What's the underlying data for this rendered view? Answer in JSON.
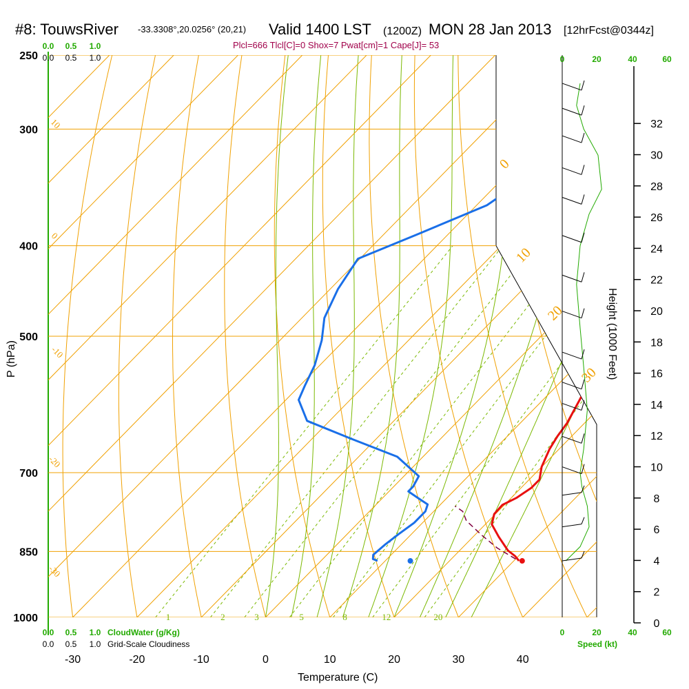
{
  "header": {
    "station": "#8: TouwsRiver",
    "coords": "-33.3308°,20.0256° (20,21)",
    "valid": "Valid 1400 LST",
    "zulu": "(1200Z)",
    "date": "MON 28 Jan 2013",
    "forecast": "[12hrFcst@0344z]",
    "indices": "Plcl=666 Tlcl[C]=0 Shox=7 Pwat[cm]=1 Cape[J]= 53"
  },
  "colors": {
    "isotherm": "#f0a000",
    "mixing_ratio": "#7ab800",
    "temperature": "#e81010",
    "dewpoint": "#1a6fe8",
    "parcel": "#800040",
    "cloud_axis": "#22aa00",
    "speed_line": "#22aa00",
    "indices_text": "#a0004a"
  },
  "labels": {
    "x_axis_title": "Temperature (C)",
    "y_axis_title": "P (hPa)",
    "height_axis_title": "Height (1000 Feet)",
    "cloudwater_label": "CloudWater (g/Kg)",
    "cloudiness_label": "Grid-Scale Cloudiness",
    "speed_label": "Speed (kt)"
  },
  "chart_data": {
    "type": "line",
    "title": "#8: TouwsRiver  Valid 1400 LST (1200Z) MON 28 Jan 2013",
    "xlabel": "Temperature (C)",
    "ylabel": "P (hPa)",
    "xlim": [
      -34,
      46
    ],
    "y_scale": "log",
    "ylim": [
      1000,
      250
    ],
    "x_ticks": [
      "-30",
      "-20",
      "-10",
      "0",
      "10",
      "20",
      "30",
      "40"
    ],
    "p_ticks": [
      "250",
      "300",
      "400",
      "500",
      "700",
      "850",
      "1000"
    ],
    "height_ticks": [
      "0",
      "2",
      "4",
      "6",
      "8",
      "10",
      "12",
      "14",
      "16",
      "18",
      "20",
      "22",
      "24",
      "26",
      "28",
      "30",
      "32"
    ],
    "cloud_ticks_green": [
      "0.0",
      "0.5",
      "1.0"
    ],
    "cloud_ticks_black": [
      "0.0",
      "0.5",
      "1.0"
    ],
    "speed_ticks": [
      "0",
      "20",
      "40",
      "60"
    ],
    "skewed_isotherm_labels": [
      "0",
      "10",
      "20",
      "30"
    ],
    "left_isotherm_labels": [
      "10",
      "0",
      "-10",
      "-20",
      "-30"
    ],
    "mixing_ratio_labels": [
      "1",
      "2",
      "3",
      "5",
      "8",
      "12",
      "20"
    ],
    "series": [
      {
        "name": "Temperature",
        "points": [
          [
            30.8,
            870
          ],
          [
            29.5,
            860
          ],
          [
            27.5,
            848
          ],
          [
            24.0,
            820
          ],
          [
            21.0,
            795
          ],
          [
            19.8,
            775
          ],
          [
            19.7,
            758
          ],
          [
            20.8,
            745
          ],
          [
            21.6,
            727
          ],
          [
            21.6,
            712
          ],
          [
            20.0,
            690
          ],
          [
            18.5,
            660
          ],
          [
            17.8,
            640
          ],
          [
            17.3,
            620
          ],
          [
            15.7,
            585
          ],
          [
            14.2,
            555
          ],
          [
            12.7,
            525
          ],
          [
            11.2,
            497
          ],
          [
            9.2,
            460
          ],
          [
            6.7,
            420
          ],
          [
            4.6,
            393
          ],
          [
            1.4,
            358
          ],
          [
            -2.6,
            327
          ],
          [
            -5.7,
            304
          ],
          [
            -7.6,
            285
          ],
          [
            -9.1,
            268
          ]
        ]
      },
      {
        "name": "Dewpoint",
        "points": [
          [
            8.8,
            870
          ],
          [
            7.8,
            866
          ],
          [
            7.2,
            857
          ],
          [
            7.5,
            835
          ],
          [
            8.0,
            815
          ],
          [
            8.7,
            792
          ],
          [
            8.7,
            770
          ],
          [
            8.0,
            757
          ],
          [
            5.5,
            745
          ],
          [
            3.0,
            733
          ],
          [
            3.0,
            724
          ],
          [
            2.3,
            706
          ],
          [
            -4.0,
            673
          ],
          [
            -13.5,
            645
          ],
          [
            -23.5,
            616
          ],
          [
            -28.0,
            585
          ],
          [
            -29.2,
            565
          ],
          [
            -30.8,
            537
          ],
          [
            -33.5,
            505
          ],
          [
            -36.5,
            478
          ],
          [
            -38.8,
            445
          ],
          [
            -40.3,
            413
          ],
          [
            -34.8,
            389
          ],
          [
            -28.4,
            362
          ],
          [
            -25.8,
            332
          ],
          [
            -23.8,
            304
          ],
          [
            -23.0,
            288
          ],
          [
            -22.0,
            268
          ]
        ]
      },
      {
        "name": "Parcel",
        "points": [
          [
            30.0,
            866
          ],
          [
            25.5,
            843
          ],
          [
            21.0,
            816
          ],
          [
            16.5,
            788
          ],
          [
            14.5,
            770
          ],
          [
            12.5,
            760
          ]
        ]
      }
    ],
    "surface_markers": [
      {
        "name": "surface temperature",
        "x": 31.3,
        "p": 870
      },
      {
        "name": "surface dewpoint",
        "x": 13.9,
        "p": 870
      }
    ],
    "wind_speed_profile_kt": [
      [
        2,
        870
      ],
      [
        10,
        840
      ],
      [
        15,
        800
      ],
      [
        14,
        760
      ],
      [
        11,
        725
      ],
      [
        10,
        700
      ],
      [
        12,
        660
      ],
      [
        14,
        600
      ],
      [
        12,
        540
      ],
      [
        10,
        490
      ],
      [
        8,
        440
      ],
      [
        10,
        400
      ],
      [
        15,
        370
      ],
      [
        22,
        348
      ],
      [
        20,
        320
      ],
      [
        12,
        300
      ],
      [
        8,
        283
      ],
      [
        10,
        268
      ]
    ],
    "wind_direction_deg": [
      [
        160,
        870
      ],
      [
        155,
        800
      ],
      [
        150,
        740
      ],
      [
        300,
        690
      ],
      [
        315,
        640
      ],
      [
        320,
        590
      ],
      [
        315,
        560
      ],
      [
        300,
        520
      ],
      [
        285,
        470
      ],
      [
        275,
        430
      ],
      [
        270,
        390
      ],
      [
        270,
        355
      ],
      [
        270,
        330
      ],
      [
        265,
        305
      ],
      [
        260,
        285
      ],
      [
        255,
        268
      ]
    ]
  }
}
